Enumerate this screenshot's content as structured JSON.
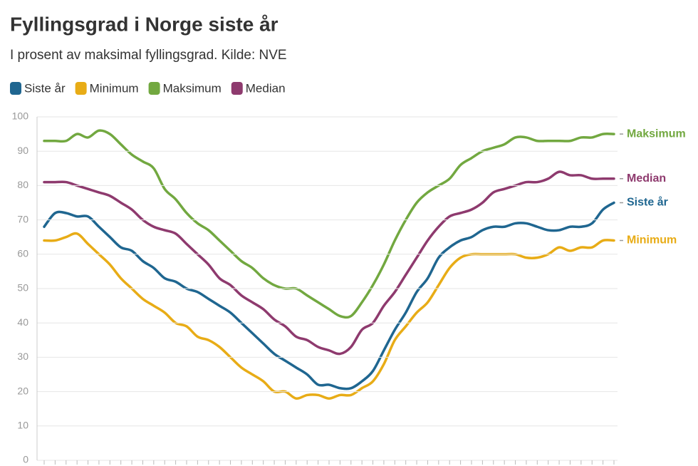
{
  "chart_data": {
    "type": "line",
    "title": "Fyllingsgrad i Norge siste år",
    "subtitle": "I prosent av maksimal fyllingsgrad. Kilde: NVE",
    "categories": [
      null,
      null,
      null,
      null,
      null,
      null,
      null,
      null,
      null,
      null,
      null,
      null,
      null,
      null,
      null,
      null,
      null,
      null,
      null,
      null,
      null,
      null,
      null,
      null,
      null,
      null,
      null,
      null,
      null,
      null,
      null,
      null,
      null,
      null,
      null,
      null,
      null,
      null,
      null,
      null,
      null,
      null,
      null,
      null,
      null,
      null,
      null,
      null,
      null,
      null,
      null,
      null,
      null
    ],
    "series": [
      {
        "name": "Siste år",
        "color": "#1f6690",
        "values": [
          68,
          72,
          72,
          71,
          71,
          68,
          65,
          62,
          61,
          58,
          56,
          53,
          52,
          50,
          49,
          47,
          45,
          43,
          40,
          37,
          34,
          31,
          29,
          27,
          25,
          22,
          22,
          21,
          21,
          23,
          26,
          32,
          38,
          43,
          49,
          53,
          59,
          62,
          64,
          65,
          67,
          68,
          68,
          69,
          69,
          68,
          67,
          67,
          68,
          68,
          69,
          73,
          75
        ]
      },
      {
        "name": "Minimum",
        "color": "#e8ac16",
        "values": [
          64,
          64,
          65,
          66,
          63,
          60,
          57,
          53,
          50,
          47,
          45,
          43,
          40,
          39,
          36,
          35,
          33,
          30,
          27,
          25,
          23,
          20,
          20,
          18,
          19,
          19,
          18,
          19,
          19,
          21,
          23,
          28,
          35,
          39,
          43,
          46,
          51,
          56,
          59,
          60,
          60,
          60,
          60,
          60,
          59,
          59,
          60,
          62,
          61,
          62,
          62,
          64,
          64
        ]
      },
      {
        "name": "Maksimum",
        "color": "#72a840",
        "values": [
          93,
          93,
          93,
          95,
          94,
          96,
          95,
          92,
          89,
          87,
          85,
          79,
          76,
          72,
          69,
          67,
          64,
          61,
          58,
          56,
          53,
          51,
          50,
          50,
          48,
          46,
          44,
          42,
          42,
          46,
          51,
          57,
          64,
          70,
          75,
          78,
          80,
          82,
          86,
          88,
          90,
          91,
          92,
          94,
          94,
          93,
          93,
          93,
          93,
          94,
          94,
          95,
          95
        ]
      },
      {
        "name": "Median",
        "color": "#8e3a6e",
        "values": [
          81,
          81,
          81,
          80,
          79,
          78,
          77,
          75,
          73,
          70,
          68,
          67,
          66,
          63,
          60,
          57,
          53,
          51,
          48,
          46,
          44,
          41,
          39,
          36,
          35,
          33,
          32,
          31,
          33,
          38,
          40,
          45,
          49,
          54,
          59,
          64,
          68,
          71,
          72,
          73,
          75,
          78,
          79,
          80,
          81,
          81,
          82,
          84,
          83,
          83,
          82,
          82,
          82
        ]
      }
    ],
    "ylim": [
      0,
      100
    ],
    "yticks": [
      0,
      10,
      20,
      30,
      40,
      50,
      60,
      70,
      80,
      90,
      100
    ],
    "grid": true
  }
}
